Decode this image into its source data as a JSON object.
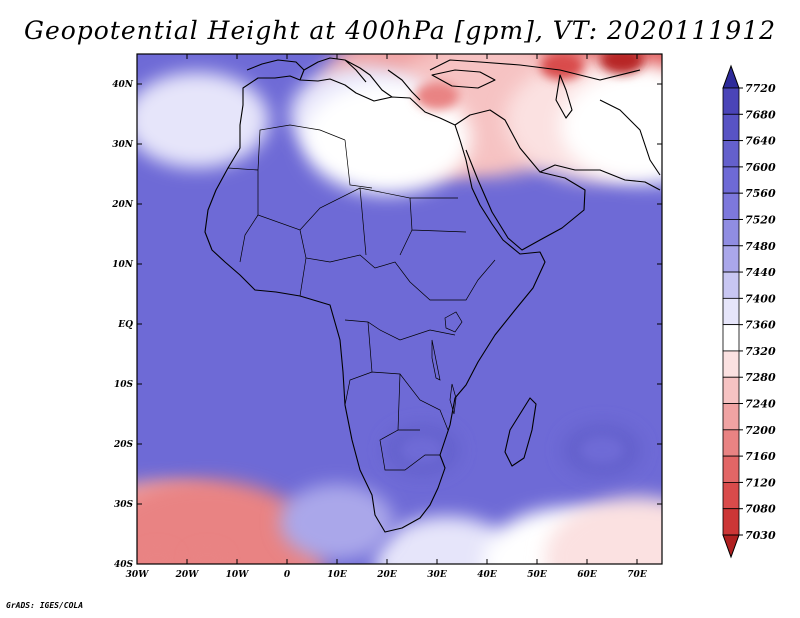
{
  "title": "Geopotential Height at 400hPa [gpm], VT: 2020111912",
  "credit": "GrADS: IGES/COLA",
  "map": {
    "lon_range": [
      -30,
      75
    ],
    "lat_range": [
      -40,
      45
    ],
    "lon_ticks": [
      {
        "value": -30,
        "label": "30W"
      },
      {
        "value": -20,
        "label": "20W"
      },
      {
        "value": -10,
        "label": "10W"
      },
      {
        "value": 0,
        "label": "0"
      },
      {
        "value": 10,
        "label": "10E"
      },
      {
        "value": 20,
        "label": "20E"
      },
      {
        "value": 30,
        "label": "30E"
      },
      {
        "value": 40,
        "label": "40E"
      },
      {
        "value": 50,
        "label": "50E"
      },
      {
        "value": 60,
        "label": "60E"
      },
      {
        "value": 70,
        "label": "70E"
      }
    ],
    "lat_ticks": [
      {
        "value": 40,
        "label": "40N"
      },
      {
        "value": 30,
        "label": "30N"
      },
      {
        "value": 20,
        "label": "20N"
      },
      {
        "value": 10,
        "label": "10N"
      },
      {
        "value": 0,
        "label": "EQ"
      },
      {
        "value": -10,
        "label": "10S"
      },
      {
        "value": -20,
        "label": "20S"
      },
      {
        "value": -30,
        "label": "30S"
      },
      {
        "value": -40,
        "label": "40S"
      }
    ]
  },
  "colorbar": {
    "labels": [
      "7720",
      "7680",
      "7640",
      "7600",
      "7560",
      "7520",
      "7480",
      "7440",
      "7400",
      "7360",
      "7320",
      "7280",
      "7240",
      "7200",
      "7160",
      "7120",
      "7080",
      "7030"
    ],
    "top_color": "#2d2a9a",
    "bottom_color": "#b02020",
    "colors": [
      "#3b35a8",
      "#4a44b8",
      "#5853c4",
      "#6460cc",
      "#6e6ad6",
      "#7d78dc",
      "#908de2",
      "#aaa7ea",
      "#c8c6f2",
      "#e6e5fa",
      "#ffffff",
      "#fbe1e1",
      "#f6c3c3",
      "#f0a3a3",
      "#e98383",
      "#e26666",
      "#d94b4b",
      "#cc3636",
      "#b82828"
    ]
  },
  "field": {
    "background": "#6e6ad6",
    "anomalies": [
      {
        "lon": 67,
        "lat": 44,
        "value": 7030
      },
      {
        "lon": 55,
        "lat": 43,
        "value": 7120
      },
      {
        "lon": 30,
        "lat": 38,
        "value": 7200
      },
      {
        "lon": 40,
        "lat": 36,
        "value": 7260
      },
      {
        "lon": 15,
        "lat": 35,
        "value": 7380
      },
      {
        "lon": 20,
        "lat": 31,
        "value": 7330
      },
      {
        "lon": 62,
        "lat": 34,
        "value": 7300
      },
      {
        "lon": 72,
        "lat": 33,
        "value": 7320
      },
      {
        "lon": -18,
        "lat": 34,
        "value": 7380
      },
      {
        "lon": -26,
        "lat": -39,
        "value": 7210
      },
      {
        "lon": -16,
        "lat": -39,
        "value": 7180
      },
      {
        "lon": 32,
        "lat": -40,
        "value": 7380
      },
      {
        "lon": 56,
        "lat": -40,
        "value": 7330
      },
      {
        "lon": 70,
        "lat": -39,
        "value": 7300
      },
      {
        "lon": 10,
        "lat": -33,
        "value": 7440
      },
      {
        "lon": 63,
        "lat": -21,
        "value": 7610
      },
      {
        "lon": 27,
        "lat": -21,
        "value": 7600
      }
    ]
  }
}
